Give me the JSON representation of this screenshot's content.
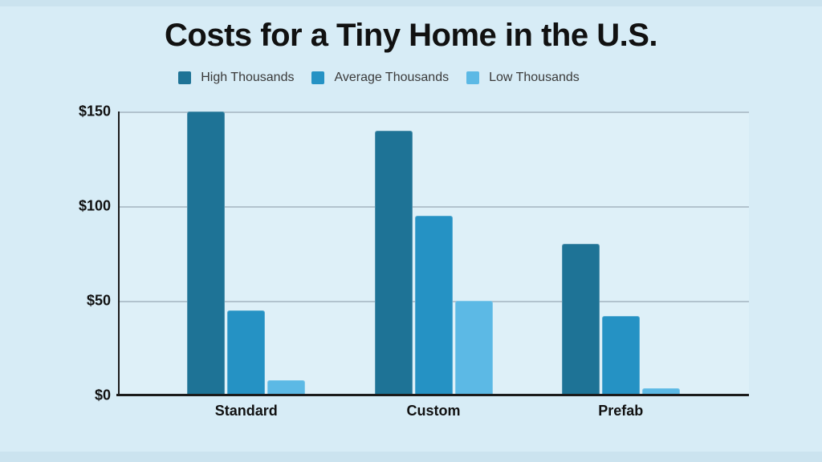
{
  "page": {
    "background": "#d7ecf6",
    "plot_background": "#def0f8",
    "frame_strip_color": "#cbe3ef",
    "axis_color": "#1b1b1b",
    "gridline_color": "#b2c3ce",
    "text_color": "#111111",
    "legend_text_color": "#3a3a3a"
  },
  "chart_data": {
    "type": "bar",
    "title": "Costs for a Tiny Home in the U.S.",
    "categories": [
      "Standard",
      "Custom",
      "Prefab"
    ],
    "series": [
      {
        "name": "High Thousands",
        "color": "#1e7396",
        "values": [
          150,
          140,
          80
        ]
      },
      {
        "name": "Average Thousands",
        "color": "#2592c4",
        "values": [
          45,
          95,
          42
        ]
      },
      {
        "name": "Low Thousands",
        "color": "#5cb9e5",
        "values": [
          8,
          50,
          4
        ]
      }
    ],
    "xlabel": "",
    "ylabel": "",
    "ylim": [
      0,
      150
    ],
    "yticks": [
      {
        "value": 0,
        "label": "$0"
      },
      {
        "value": 50,
        "label": "$50"
      },
      {
        "value": 100,
        "label": "$100"
      },
      {
        "value": 150,
        "label": "$150"
      }
    ],
    "grid": true,
    "legend_position": "top"
  }
}
